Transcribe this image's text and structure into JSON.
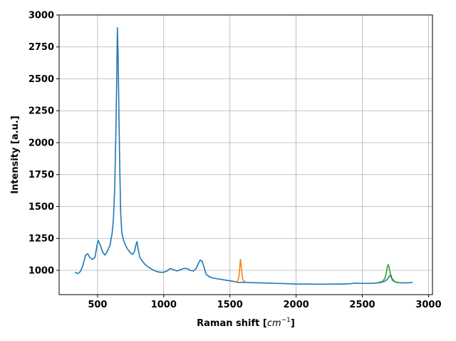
{
  "chart_data": {
    "type": "line",
    "xlabel": "Raman shift [",
    "xlabel_unit": "cm",
    "xlabel_exp": "−1",
    "xlabel_close": "]",
    "ylabel": "Intensity [a.u.]",
    "xlim": [
      210,
      3030
    ],
    "ylim": [
      810,
      3000
    ],
    "xticks": [
      500,
      1000,
      1500,
      2000,
      2500,
      3000
    ],
    "yticks": [
      1000,
      1250,
      1500,
      1750,
      2000,
      2250,
      2500,
      2750,
      3000
    ],
    "grid": true,
    "series": [
      {
        "color": "#1f77b4",
        "points": [
          [
            330,
            985
          ],
          [
            350,
            975
          ],
          [
            370,
            990
          ],
          [
            390,
            1040
          ],
          [
            410,
            1120
          ],
          [
            425,
            1130
          ],
          [
            440,
            1105
          ],
          [
            460,
            1085
          ],
          [
            480,
            1100
          ],
          [
            495,
            1190
          ],
          [
            505,
            1235
          ],
          [
            520,
            1200
          ],
          [
            540,
            1140
          ],
          [
            555,
            1120
          ],
          [
            575,
            1150
          ],
          [
            595,
            1200
          ],
          [
            610,
            1290
          ],
          [
            620,
            1400
          ],
          [
            630,
            1650
          ],
          [
            638,
            2050
          ],
          [
            645,
            2500
          ],
          [
            650,
            2900
          ],
          [
            656,
            2650
          ],
          [
            662,
            2200
          ],
          [
            668,
            1800
          ],
          [
            675,
            1450
          ],
          [
            683,
            1300
          ],
          [
            695,
            1240
          ],
          [
            710,
            1200
          ],
          [
            725,
            1170
          ],
          [
            745,
            1140
          ],
          [
            765,
            1125
          ],
          [
            780,
            1150
          ],
          [
            790,
            1200
          ],
          [
            798,
            1225
          ],
          [
            806,
            1170
          ],
          [
            820,
            1100
          ],
          [
            840,
            1070
          ],
          [
            860,
            1045
          ],
          [
            880,
            1030
          ],
          [
            900,
            1015
          ],
          [
            925,
            1000
          ],
          [
            950,
            990
          ],
          [
            975,
            985
          ],
          [
            1000,
            985
          ],
          [
            1025,
            995
          ],
          [
            1050,
            1015
          ],
          [
            1075,
            1005
          ],
          [
            1100,
            995
          ],
          [
            1125,
            1005
          ],
          [
            1150,
            1015
          ],
          [
            1175,
            1015
          ],
          [
            1200,
            1000
          ],
          [
            1225,
            995
          ],
          [
            1245,
            1015
          ],
          [
            1260,
            1050
          ],
          [
            1275,
            1080
          ],
          [
            1288,
            1075
          ],
          [
            1300,
            1040
          ],
          [
            1320,
            970
          ],
          [
            1345,
            950
          ],
          [
            1370,
            940
          ],
          [
            1400,
            935
          ],
          [
            1430,
            930
          ],
          [
            1460,
            925
          ],
          [
            1490,
            920
          ],
          [
            1520,
            915
          ],
          [
            1545,
            910
          ],
          [
            1560,
            906
          ],
          [
            1620,
            905
          ],
          [
            1680,
            903
          ],
          [
            1750,
            902
          ],
          [
            1800,
            900
          ],
          [
            1850,
            898
          ],
          [
            1900,
            897
          ],
          [
            1950,
            895
          ],
          [
            2000,
            893
          ],
          [
            2050,
            893
          ],
          [
            2100,
            893
          ],
          [
            2150,
            892
          ],
          [
            2200,
            892
          ],
          [
            2250,
            892
          ],
          [
            2300,
            893
          ],
          [
            2350,
            893
          ],
          [
            2400,
            895
          ],
          [
            2450,
            900
          ],
          [
            2500,
            898
          ],
          [
            2550,
            898
          ],
          [
            2600,
            900
          ],
          [
            2640,
            905
          ],
          [
            2670,
            915
          ],
          [
            2690,
            930
          ],
          [
            2700,
            950
          ],
          [
            2710,
            960
          ],
          [
            2720,
            940
          ],
          [
            2730,
            920
          ],
          [
            2760,
            905
          ],
          [
            2800,
            902
          ],
          [
            2850,
            903
          ],
          [
            2880,
            905
          ]
        ]
      },
      {
        "color": "#ff7f0e",
        "points": [
          [
            1540,
            910
          ],
          [
            1555,
            915
          ],
          [
            1565,
            935
          ],
          [
            1572,
            990
          ],
          [
            1576,
            1050
          ],
          [
            1580,
            1085
          ],
          [
            1584,
            1050
          ],
          [
            1590,
            980
          ],
          [
            1597,
            930
          ],
          [
            1605,
            915
          ],
          [
            1620,
            910
          ]
        ]
      },
      {
        "color": "#2ca02c",
        "points": [
          [
            2620,
            905
          ],
          [
            2650,
            912
          ],
          [
            2670,
            935
          ],
          [
            2682,
            985
          ],
          [
            2690,
            1030
          ],
          [
            2696,
            1045
          ],
          [
            2702,
            1025
          ],
          [
            2712,
            975
          ],
          [
            2725,
            935
          ],
          [
            2745,
            912
          ],
          [
            2770,
            905
          ],
          [
            2790,
            903
          ]
        ]
      }
    ]
  }
}
